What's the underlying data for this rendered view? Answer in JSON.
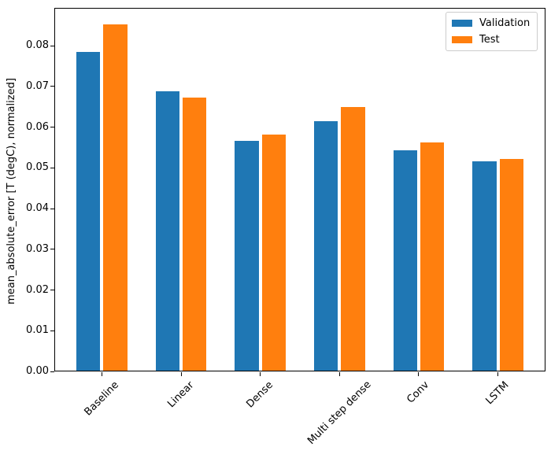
{
  "chart_data": {
    "type": "bar",
    "title": "",
    "xlabel": "",
    "ylabel": "mean_absolute_error [T (degC), normalized]",
    "categories": [
      "Baseline",
      "Linear",
      "Dense",
      "Multi step dense",
      "Conv",
      "LSTM"
    ],
    "series": [
      {
        "name": "Validation",
        "color": "#1f77b4",
        "values": [
          0.0785,
          0.0688,
          0.0566,
          0.0614,
          0.0543,
          0.0516
        ]
      },
      {
        "name": "Test",
        "color": "#ff7f0e",
        "values": [
          0.0852,
          0.0672,
          0.0582,
          0.0649,
          0.0562,
          0.0522
        ]
      }
    ],
    "ylim": [
      0,
      0.0893
    ],
    "xlim": [
      -0.6,
      5.6
    ],
    "ytick_labels": [
      "0.00",
      "0.01",
      "0.02",
      "0.03",
      "0.04",
      "0.05",
      "0.06",
      "0.07",
      "0.08"
    ],
    "ytick_step": 0.01,
    "bar_width": 0.3,
    "bar_offset": 0.17,
    "grid": false,
    "xtick_rotation_deg": 45,
    "legend_position": "upper-right",
    "axis_color": "#000000",
    "background_color": "#ffffff"
  }
}
